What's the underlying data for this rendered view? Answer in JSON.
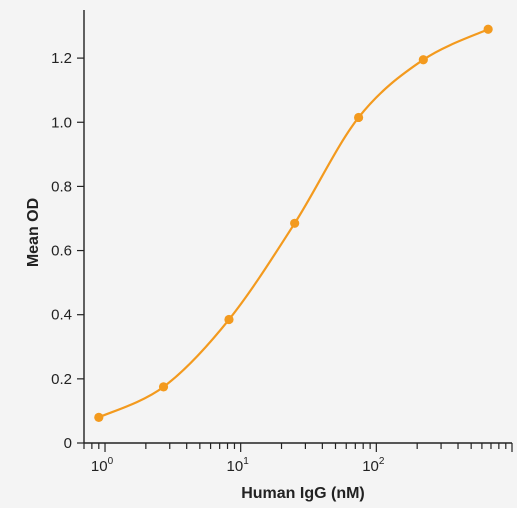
{
  "chart_data": {
    "type": "line",
    "x_scale": "log",
    "xlabel": "Human IgG (nM)",
    "ylabel": "Mean OD",
    "xlim": [
      0.7,
      1000
    ],
    "ylim": [
      0,
      1.35
    ],
    "x_ticks": [
      {
        "value": 1,
        "base": "10",
        "exp": "0"
      },
      {
        "value": 10,
        "base": "10",
        "exp": "1"
      },
      {
        "value": 100,
        "base": "10",
        "exp": "2"
      }
    ],
    "y_ticks": [
      {
        "value": 0,
        "label": "0"
      },
      {
        "value": 0.2,
        "label": "0.2"
      },
      {
        "value": 0.4,
        "label": "0.4"
      },
      {
        "value": 0.6,
        "label": "0.6"
      },
      {
        "value": 0.8,
        "label": "0.8"
      },
      {
        "value": 1.0,
        "label": "1.0"
      },
      {
        "value": 1.2,
        "label": "1.2"
      }
    ],
    "series": [
      {
        "x": [
          0.9,
          2.7,
          8.2,
          25,
          74,
          222,
          667
        ],
        "y": [
          0.08,
          0.175,
          0.385,
          0.685,
          1.015,
          1.195,
          1.29
        ]
      }
    ],
    "color": "#f39a1e",
    "grid": false
  }
}
